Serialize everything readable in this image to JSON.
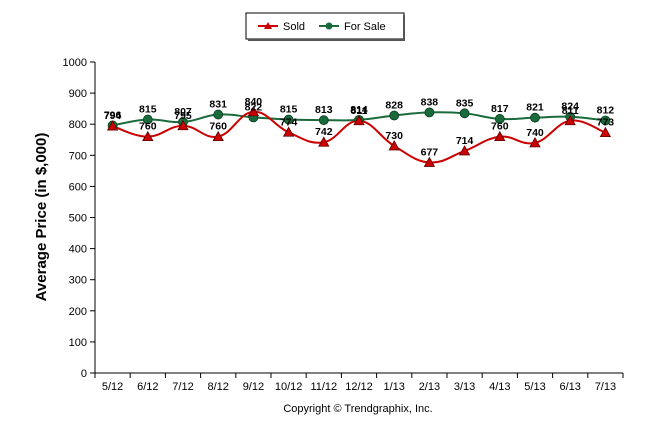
{
  "chart_data": {
    "type": "line",
    "categories": [
      "5/12",
      "6/12",
      "7/12",
      "8/12",
      "9/12",
      "10/12",
      "11/12",
      "12/12",
      "1/13",
      "2/13",
      "3/13",
      "4/13",
      "5/13",
      "6/13",
      "7/13"
    ],
    "series": [
      {
        "name": "Sold",
        "color": "#cc0000",
        "marker": "triangle",
        "values": [
          794,
          760,
          795,
          760,
          840,
          774,
          742,
          811,
          730,
          677,
          714,
          760,
          740,
          811,
          773
        ]
      },
      {
        "name": "For Sale",
        "color": "#1a6b3c",
        "marker": "circle",
        "values": [
          796,
          815,
          807,
          831,
          822,
          815,
          813,
          814,
          828,
          838,
          835,
          817,
          821,
          824,
          812
        ]
      }
    ],
    "ylabel": "Average Price (in $,000)",
    "ylim": [
      0,
      1000
    ],
    "yticks": [
      0,
      100,
      200,
      300,
      400,
      500,
      600,
      700,
      800,
      900,
      1000
    ],
    "grid": false,
    "legend": "top-center",
    "footer": "Copyright © Trendgraphix, Inc."
  }
}
